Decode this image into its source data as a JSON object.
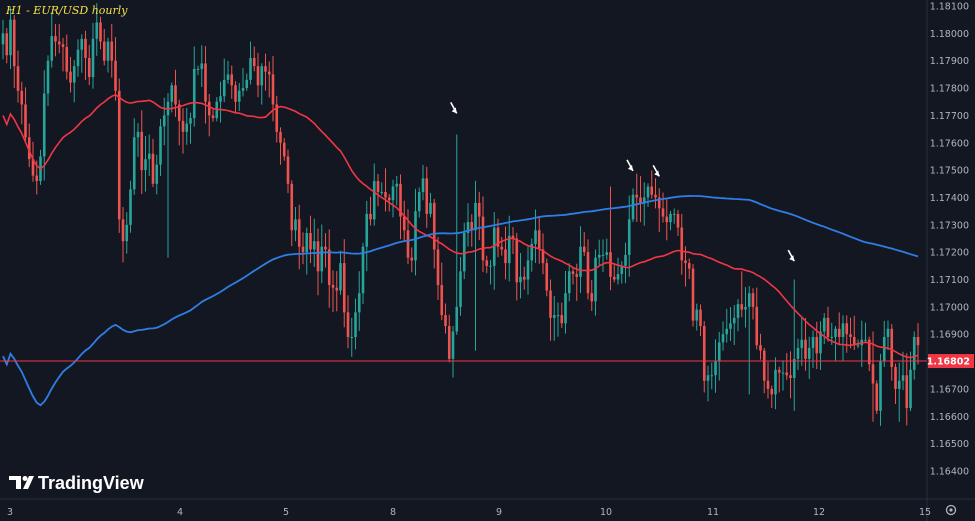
{
  "chart_data": {
    "type": "candlestick",
    "title": "H1 - EUR/USD hourly",
    "ylim": [
      1.1641,
      1.1812
    ],
    "y_ticks": [
      "1.18100",
      "1.18000",
      "1.17900",
      "1.17800",
      "1.17700",
      "1.17600",
      "1.17500",
      "1.17400",
      "1.17300",
      "1.17200",
      "1.17100",
      "1.17000",
      "1.16900",
      "1.16800",
      "1.16700",
      "1.16600",
      "1.16500",
      "1.16400"
    ],
    "x_ticks": [
      "3",
      "4",
      "5",
      "8",
      "9",
      "10",
      "11",
      "12",
      "15"
    ],
    "x_tick_index": [
      7,
      177,
      283,
      390,
      496,
      603,
      710,
      816,
      922
    ],
    "last_price": "1.16802",
    "last_price_value": 1.16802,
    "colors": {
      "background": "#131722",
      "up": "#26a69a",
      "down": "#ef5350",
      "ma_red": "#f23645",
      "ma_blue": "#2f7ee6",
      "last_price_line": "#f23645",
      "arrows": "#ffffff"
    },
    "close": [
      1.18,
      1.1792,
      1.1805,
      1.1788,
      1.1779,
      1.1774,
      1.1762,
      1.1754,
      1.1748,
      1.1746,
      1.1755,
      1.1778,
      1.179,
      1.1799,
      1.1797,
      1.1796,
      1.1795,
      1.1786,
      1.1782,
      1.1788,
      1.1794,
      1.1798,
      1.1791,
      1.1784,
      1.1798,
      1.1804,
      1.1797,
      1.179,
      1.1797,
      1.179,
      1.1779,
      1.1732,
      1.1724,
      1.173,
      1.1743,
      1.1762,
      1.1764,
      1.175,
      1.1754,
      1.1756,
      1.1745,
      1.1752,
      1.1766,
      1.177,
      1.1775,
      1.1781,
      1.1774,
      1.1768,
      1.1764,
      1.1767,
      1.1769,
      1.1787,
      1.1787,
      1.1789,
      1.1775,
      1.177,
      1.1769,
      1.1775,
      1.1777,
      1.1783,
      1.1785,
      1.1781,
      1.1775,
      1.1779,
      1.178,
      1.1783,
      1.1791,
      1.1788,
      1.1781,
      1.1788,
      1.1786,
      1.1785,
      1.1774,
      1.1764,
      1.176,
      1.1755,
      1.1745,
      1.1728,
      1.1732,
      1.1722,
      1.172,
      1.1727,
      1.1721,
      1.1724,
      1.1713,
      1.1722,
      1.1721,
      1.1708,
      1.1707,
      1.1706,
      1.1716,
      1.1698,
      1.1689,
      1.1689,
      1.1698,
      1.1705,
      1.1722,
      1.1734,
      1.1732,
      1.1746,
      1.1742,
      1.1742,
      1.174,
      1.1739,
      1.1744,
      1.1745,
      1.1733,
      1.1728,
      1.1718,
      1.1717,
      1.1735,
      1.1742,
      1.1747,
      1.1734,
      1.1738,
      1.1721,
      1.1708,
      1.1697,
      1.1693,
      1.1681,
      1.1691,
      1.17,
      1.1713,
      1.1727,
      1.1731,
      1.1728,
      1.1738,
      1.1733,
      1.1717,
      1.1715,
      1.1715,
      1.1729,
      1.1722,
      1.1721,
      1.1716,
      1.1726,
      1.1725,
      1.1709,
      1.1711,
      1.171,
      1.1717,
      1.1723,
      1.1728,
      1.1721,
      1.1716,
      1.1706,
      1.1696,
      1.1697,
      1.1697,
      1.1694,
      1.1705,
      1.1713,
      1.1712,
      1.1711,
      1.1722,
      1.172,
      1.1705,
      1.1702,
      1.1718,
      1.1719,
      1.1719,
      1.172,
      1.1711,
      1.171,
      1.1712,
      1.1715,
      1.1719,
      1.1732,
      1.1741,
      1.174,
      1.1738,
      1.174,
      1.1744,
      1.1741,
      1.174,
      1.1736,
      1.1733,
      1.1731,
      1.1734,
      1.1734,
      1.1729,
      1.1717,
      1.1716,
      1.1714,
      1.1695,
      1.1699,
      1.1693,
      1.1673,
      1.1675,
      1.1675,
      1.168,
      1.1687,
      1.169,
      1.1692,
      1.1694,
      1.1696,
      1.1701,
      1.1699,
      1.17,
      1.1705,
      1.17,
      1.1686,
      1.1684,
      1.1673,
      1.167,
      1.1668,
      1.1677,
      1.1676,
      1.1676,
      1.1675,
      1.1674,
      1.1681,
      1.1685,
      1.1688,
      1.1681,
      1.1685,
      1.1689,
      1.1683,
      1.1691,
      1.1696,
      1.1689,
      1.1689,
      1.1692,
      1.1689,
      1.1694,
      1.169,
      1.1689,
      1.1686,
      1.1686,
      1.1688,
      1.1688,
      1.1679,
      1.1672,
      1.1662,
      1.168,
      1.1689,
      1.1692,
      1.1678,
      1.167,
      1.1673,
      1.1675,
      1.1663,
      1.1677,
      1.1689,
      1.1686
    ]
  }
}
